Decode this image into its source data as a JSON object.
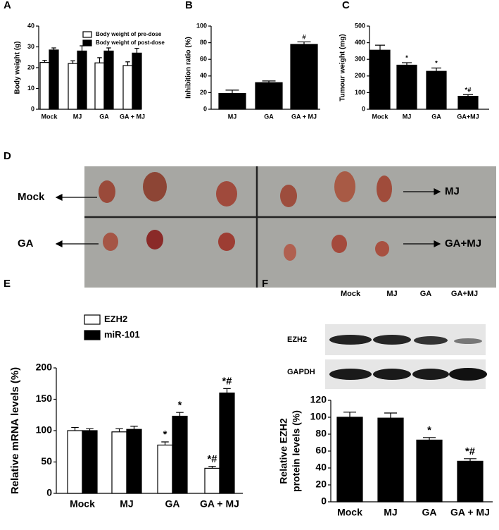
{
  "chart_data": [
    {
      "type": "bar",
      "panel": "A",
      "ylabel": [
        "Body weight (g)"
      ],
      "categories": [
        "Mock",
        "MJ",
        "GA",
        "GA + MJ"
      ],
      "series": [
        {
          "name": "Body weight of pre-dose",
          "color": "#ffffff",
          "values": [
            22.5,
            22,
            22.3,
            21
          ],
          "errors": [
            1,
            1.3,
            2.5,
            1.8
          ]
        },
        {
          "name": "Body weight of post-dose",
          "color": "#000000",
          "values": [
            28.5,
            28,
            28,
            27
          ],
          "errors": [
            1,
            2.5,
            1.5,
            2.3
          ]
        }
      ],
      "ylim": [
        0,
        40
      ],
      "yticks": [
        0,
        10,
        20,
        30,
        40
      ]
    },
    {
      "type": "bar",
      "panel": "B",
      "ylabel": [
        "Inhibition ratio (%)"
      ],
      "categories": [
        "MJ",
        "GA",
        "GA + MJ"
      ],
      "series": [
        {
          "color": "#000000",
          "values": [
            19,
            32,
            78
          ],
          "errors": [
            4,
            2,
            3
          ],
          "annotations": [
            null,
            null,
            "#"
          ]
        }
      ],
      "ylim": [
        0,
        100
      ],
      "yticks": [
        0,
        20,
        40,
        60,
        80,
        100
      ]
    },
    {
      "type": "bar",
      "panel": "C",
      "ylabel": [
        "Tumour weight (mg)"
      ],
      "categories": [
        "Mock",
        "MJ",
        "GA",
        "GA+MJ"
      ],
      "series": [
        {
          "color": "#000000",
          "values": [
            355,
            265,
            228,
            78
          ],
          "errors": [
            30,
            15,
            20,
            10
          ],
          "annotations": [
            null,
            "*",
            "*",
            "*#"
          ]
        }
      ],
      "ylim": [
        0,
        500
      ],
      "yticks": [
        0,
        100,
        200,
        300,
        400,
        500
      ]
    },
    {
      "type": "bar",
      "panel": "E",
      "ylabel": [
        "Relative mRNA levels (%)"
      ],
      "categories": [
        "Mock",
        "MJ",
        "GA",
        "GA + MJ"
      ],
      "series": [
        {
          "name": "EZH2",
          "color": "#ffffff",
          "values": [
            100,
            98,
            77,
            40
          ],
          "errors": [
            5,
            5,
            5,
            3
          ],
          "annotations": [
            null,
            null,
            "*",
            "*#"
          ]
        },
        {
          "name": "miR-101",
          "color": "#000000",
          "values": [
            100,
            102,
            123,
            160
          ],
          "errors": [
            3,
            5,
            6,
            7
          ],
          "annotations": [
            null,
            null,
            "*",
            "*#"
          ]
        }
      ],
      "ylim": [
        0,
        200
      ],
      "yticks": [
        0,
        50,
        100,
        150,
        200
      ]
    },
    {
      "type": "bar",
      "panel": "F",
      "ylabel": [
        "Relative EZH2",
        "protein levels (%)"
      ],
      "categories": [
        "Mock",
        "MJ",
        "GA",
        "GA + MJ"
      ],
      "blot": {
        "columns": [
          "Mock",
          "MJ",
          "GA",
          "GA+MJ"
        ],
        "rows": [
          "EZH2",
          "GAPDH"
        ]
      },
      "series": [
        {
          "color": "#000000",
          "values": [
            100,
            99,
            73,
            48
          ],
          "errors": [
            6,
            6,
            3,
            3
          ],
          "annotations": [
            null,
            null,
            "*",
            "*#"
          ]
        }
      ],
      "ylim": [
        0,
        120
      ],
      "yticks": [
        0,
        20,
        40,
        60,
        80,
        100,
        120
      ]
    }
  ],
  "figure_d": {
    "panel": "D",
    "labels": [
      "Mock",
      "MJ",
      "GA",
      "GA+MJ"
    ]
  }
}
